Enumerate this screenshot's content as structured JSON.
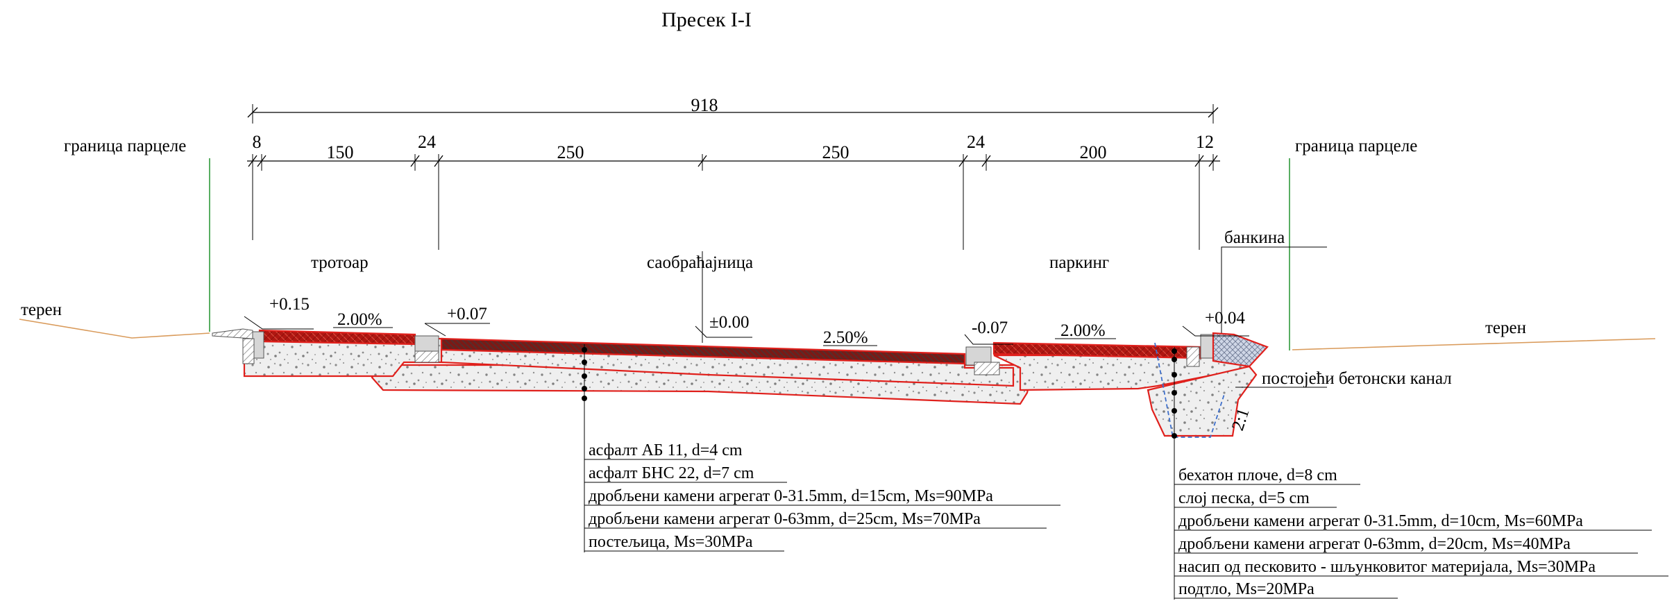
{
  "title": "Пресек I-I",
  "dimensions": {
    "total": "918",
    "segments": [
      "8",
      "150",
      "24",
      "250",
      "250",
      "24",
      "200",
      "12"
    ]
  },
  "labels": {
    "parcel_left": "граница парцеле",
    "parcel_right": "граница парцеле",
    "terrain_left": "терен",
    "terrain_right": "терен",
    "sidewalk": "тротоар",
    "roadway": "саобраћајница",
    "parking": "паркинг",
    "verge": "банкина",
    "channel": "постојећи бетонски канал",
    "slope_ratio": "2:1"
  },
  "elevations": [
    "+0.15",
    "+0.07",
    "±0.00",
    "-0.07",
    "+0.04"
  ],
  "slopes": [
    "2.00%",
    "2.50%",
    "2.00%"
  ],
  "road_layers": [
    "асфалт АБ 11, d=4 cm",
    "асфалт БНС 22, d=7 cm",
    "дробљени камени агрегат 0-31.5mm, d=15cm, Ms=90MPa",
    "дробљени камени агрегат 0-63mm, d=25cm, Ms=70MPa",
    "постељица, Ms=30MPa"
  ],
  "parking_layers": [
    "бехатон плоче, d=8 cm",
    "слој песка, d=5 cm",
    "дробљени камени агрегат 0-31.5mm, d=10cm, Ms=60MPa",
    "дробљени камени агрегат 0-63mm, d=20cm, Ms=40MPa",
    "насип од песковито - шљунковитог материјала, Ms=30MPa",
    "подтло, Ms=20MPa"
  ],
  "colors": {
    "pavement": "#b01712",
    "outline": "#e0201c",
    "gravel": "#efefef",
    "parcel_line": "#2e9a3a",
    "terrain_line": "#d99a5a"
  }
}
